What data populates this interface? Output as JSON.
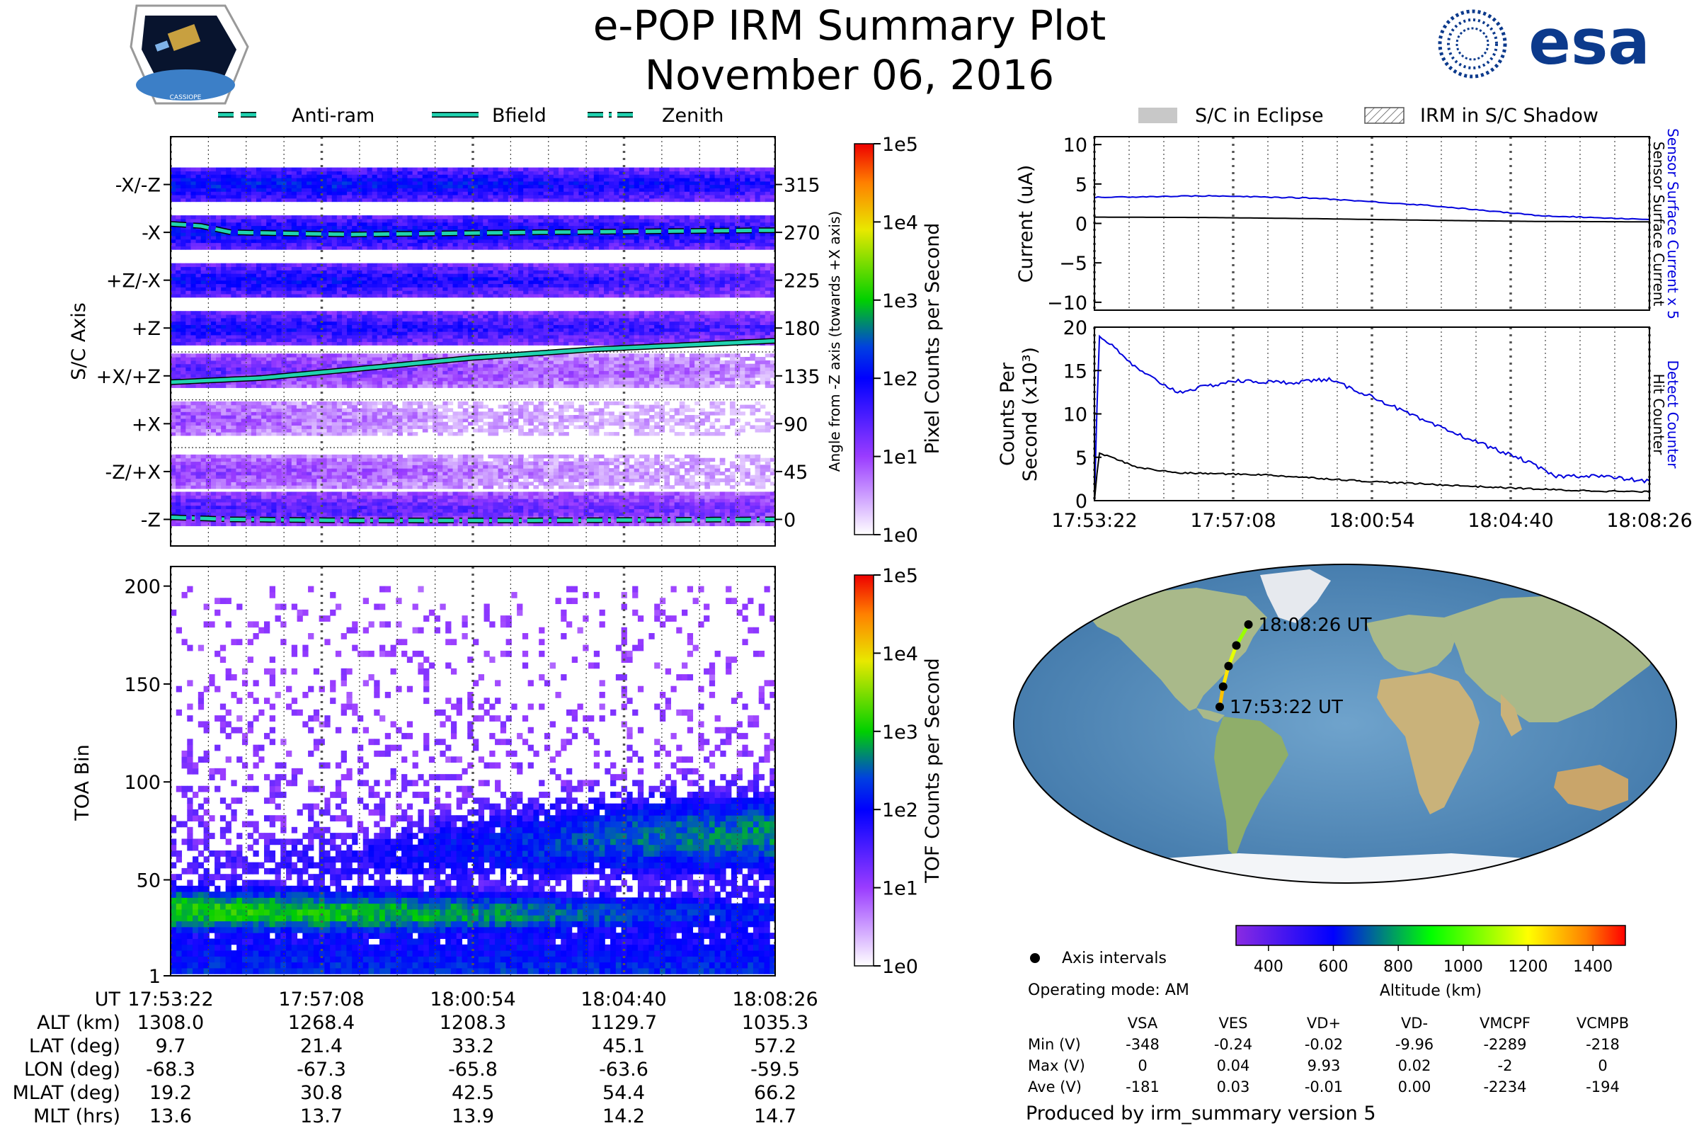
{
  "header": {
    "title": "e-POP IRM Summary Plot",
    "date": "November 06, 2016",
    "mission_badge_text": "CASSIOPE",
    "agency_logo_text": "esa"
  },
  "colors": {
    "anti_ram": "#20d2b0",
    "bfield": "#20d2b0",
    "zenith": "#20d2b0",
    "detect_counter": "#0000dd",
    "hit_counter": "#000000",
    "sensor_surface_current_x5": "#0000dd",
    "sensor_surface_current": "#000000",
    "eclipse_fill": "#c8c8c8"
  },
  "chart_data": [
    {
      "id": "pixel_angle_panel",
      "type": "heatmap",
      "legend": {
        "anti_ram": "Anti-ram",
        "bfield": "Bfield",
        "zenith": "Zenith"
      },
      "ylabel_left": "S/C Axis",
      "ylabel_right": "Angle from -Z axis (towards +X axis)",
      "axis_labels": [
        "-X/-Z",
        "-X",
        "+Z/-X",
        "+Z",
        "+X/+Z",
        "+X",
        "-Z/+X",
        "-Z"
      ],
      "angle_ticks": [
        "315",
        "270",
        "225",
        "180",
        "135",
        "90",
        "45",
        "0"
      ],
      "ylim": [
        -25,
        360
      ],
      "x_ticks": [
        "17:53:22",
        "17:57:08",
        "18:00:54",
        "18:04:40",
        "18:08:26"
      ],
      "colorbar": {
        "label": "Pixel Counts per Second",
        "ticks": [
          "1e0",
          "1e1",
          "1e2",
          "1e3",
          "1e4",
          "1e5"
        ]
      },
      "bands": [
        {
          "center": 315,
          "level": [
            2.2,
            2.2,
            2.1,
            2.0,
            1.9
          ]
        },
        {
          "center": 270,
          "level": [
            2.1,
            2.1,
            2.1,
            2.0,
            1.9
          ]
        },
        {
          "center": 225,
          "level": [
            2.0,
            2.0,
            1.9,
            1.7,
            1.5
          ]
        },
        {
          "center": 180,
          "level": [
            2.0,
            1.9,
            1.8,
            1.7,
            1.5
          ]
        },
        {
          "center": 140,
          "level": [
            1.5,
            1.2,
            1.0,
            0.8,
            0.6
          ]
        },
        {
          "center": 95,
          "level": [
            1.0,
            0.7,
            0.5,
            0.4,
            0.3
          ]
        },
        {
          "center": 45,
          "level": [
            1.1,
            0.9,
            0.7,
            0.5,
            0.4
          ]
        },
        {
          "center": 10,
          "level": [
            1.6,
            1.5,
            1.4,
            1.3,
            1.2
          ]
        }
      ],
      "series": [
        {
          "name": "Anti-ram",
          "x": [
            0,
            0.05,
            0.1,
            0.3,
            0.6,
            1.0
          ],
          "values": [
            278,
            276,
            270,
            268,
            270,
            272
          ]
        },
        {
          "name": "Bfield",
          "x": [
            0,
            0.15,
            0.3,
            0.5,
            0.7,
            1.0
          ],
          "values": [
            129,
            133,
            141,
            152,
            160,
            168
          ]
        },
        {
          "name": "Zenith",
          "x": [
            0,
            0.1,
            0.3,
            0.6,
            1.0
          ],
          "values": [
            2,
            0,
            -1,
            -1,
            0
          ]
        }
      ]
    },
    {
      "id": "toa_panel",
      "type": "heatmap",
      "ylabel": "TOA Bin",
      "y_ticks": [
        "1",
        "50",
        "100",
        "150",
        "200"
      ],
      "ylim": [
        1,
        210
      ],
      "x_ticks": [
        "17:53:22",
        "17:57:08",
        "18:00:54",
        "18:04:40",
        "18:08:26"
      ],
      "colorbar": {
        "label": "TOF Counts per Second",
        "ticks": [
          "1e0",
          "1e1",
          "1e2",
          "1e3",
          "1e4",
          "1e5"
        ]
      },
      "low_band": {
        "center": [
          33,
          32,
          31,
          31,
          32
        ],
        "level": [
          2.3,
          2.2,
          2.0,
          1.6,
          1.3
        ],
        "width": [
          14,
          14,
          13,
          13,
          12
        ]
      },
      "high_band": {
        "center": [
          55,
          58,
          65,
          70,
          72
        ],
        "level": [
          0.6,
          0.9,
          1.3,
          1.7,
          1.9
        ],
        "width": [
          16,
          18,
          22,
          24,
          24
        ]
      }
    },
    {
      "id": "current_panel",
      "type": "line",
      "ylabel": "Current (uA)",
      "ylim": [
        -11,
        11
      ],
      "y_ticks": [
        "10",
        "5",
        "0",
        "−5",
        "−10"
      ],
      "legend": {
        "eclipse": "S/C in Eclipse",
        "shadow": "IRM in S/C Shadow"
      },
      "right_labels": {
        "blue": "Sensor Surface Current x 5",
        "black": "Sensor Surface Current"
      },
      "series": [
        {
          "name": "Sensor Surface Current x 5",
          "x": [
            0,
            0.2,
            0.4,
            0.6,
            0.8,
            1.0
          ],
          "values": [
            3.3,
            3.5,
            3.2,
            2.3,
            1.0,
            0.5
          ]
        },
        {
          "name": "Sensor Surface Current",
          "x": [
            0,
            0.2,
            0.4,
            0.6,
            0.8,
            1.0
          ],
          "values": [
            0.8,
            0.75,
            0.6,
            0.4,
            0.25,
            0.2
          ]
        }
      ]
    },
    {
      "id": "counts_panel",
      "type": "line",
      "ylabel_line1": "Counts Per",
      "ylabel_line2": "Second (x10³)",
      "ylim": [
        0,
        20
      ],
      "y_ticks": [
        "0",
        "5",
        "10",
        "15",
        "20"
      ],
      "x_ticks": [
        "17:53:22",
        "17:57:08",
        "18:00:54",
        "18:04:40",
        "18:08:26"
      ],
      "right_labels": {
        "blue": "Detect Counter",
        "black": "Hit Counter"
      },
      "series": [
        {
          "name": "Detect Counter",
          "x": [
            0,
            0.008,
            0.02,
            0.08,
            0.15,
            0.25,
            0.35,
            0.42,
            0.5,
            0.6,
            0.7,
            0.78,
            0.83,
            0.9,
            1.0
          ],
          "values": [
            0,
            19,
            18.5,
            15,
            12.5,
            13.8,
            13.6,
            14.0,
            12.0,
            9.0,
            6.5,
            4.5,
            2.8,
            2.9,
            2.2
          ]
        },
        {
          "name": "Hit Counter",
          "x": [
            0,
            0.008,
            0.03,
            0.08,
            0.15,
            0.3,
            0.5,
            0.7,
            0.85,
            1.0
          ],
          "values": [
            0,
            5.5,
            5.0,
            3.8,
            3.2,
            3.0,
            2.2,
            1.6,
            1.2,
            1.0
          ]
        }
      ]
    },
    {
      "id": "ground_track_map",
      "type": "scatter",
      "start_label": "17:53:22 UT",
      "end_label": "18:08:26 UT",
      "track": [
        {
          "lon": -68.3,
          "lat": 9.7,
          "alt_km": 1308.0
        },
        {
          "lon": -67.3,
          "lat": 21.4,
          "alt_km": 1268.4
        },
        {
          "lon": -65.8,
          "lat": 33.2,
          "alt_km": 1208.3
        },
        {
          "lon": -63.6,
          "lat": 45.1,
          "alt_km": 1129.7
        },
        {
          "lon": -59.5,
          "lat": 57.2,
          "alt_km": 1035.3
        }
      ],
      "legend_axis_intervals": "Axis intervals",
      "operating_mode": "Operating mode: AM",
      "colorbar": {
        "label": "Altitude (km)",
        "ticks": [
          "400",
          "600",
          "800",
          "1000",
          "1200",
          "1400"
        ],
        "range": [
          300,
          1500
        ]
      }
    }
  ],
  "ephemeris": {
    "labels": [
      "UT",
      "ALT (km)",
      "LAT (deg)",
      "LON (deg)",
      "MLAT (deg)",
      "MLT (hrs)"
    ],
    "columns": [
      [
        "17:53:22",
        "1308.0",
        "9.7",
        "-68.3",
        "19.2",
        "13.6"
      ],
      [
        "17:57:08",
        "1268.4",
        "21.4",
        "-67.3",
        "30.8",
        "13.7"
      ],
      [
        "18:00:54",
        "1208.3",
        "33.2",
        "-65.8",
        "42.5",
        "13.9"
      ],
      [
        "18:04:40",
        "1129.7",
        "45.1",
        "-63.6",
        "54.4",
        "14.2"
      ],
      [
        "18:08:26",
        "1035.3",
        "57.2",
        "-59.5",
        "66.2",
        "14.7"
      ]
    ]
  },
  "voltages": {
    "headers": [
      "VSA",
      "VES",
      "VD+",
      "VD-",
      "VMCPF",
      "VCMPB"
    ],
    "rows": [
      {
        "label": "Min (V)",
        "values": [
          "-348",
          "-0.24",
          "-0.02",
          "-9.96",
          "-2289",
          "-218"
        ]
      },
      {
        "label": "Max (V)",
        "values": [
          "0",
          "0.04",
          "9.93",
          "0.02",
          "-2",
          "0"
        ]
      },
      {
        "label": "Ave (V)",
        "values": [
          "-181",
          "0.03",
          "-0.01",
          "0.00",
          "-2234",
          "-194"
        ]
      }
    ]
  },
  "footer": "Produced by irm_summary version 5"
}
